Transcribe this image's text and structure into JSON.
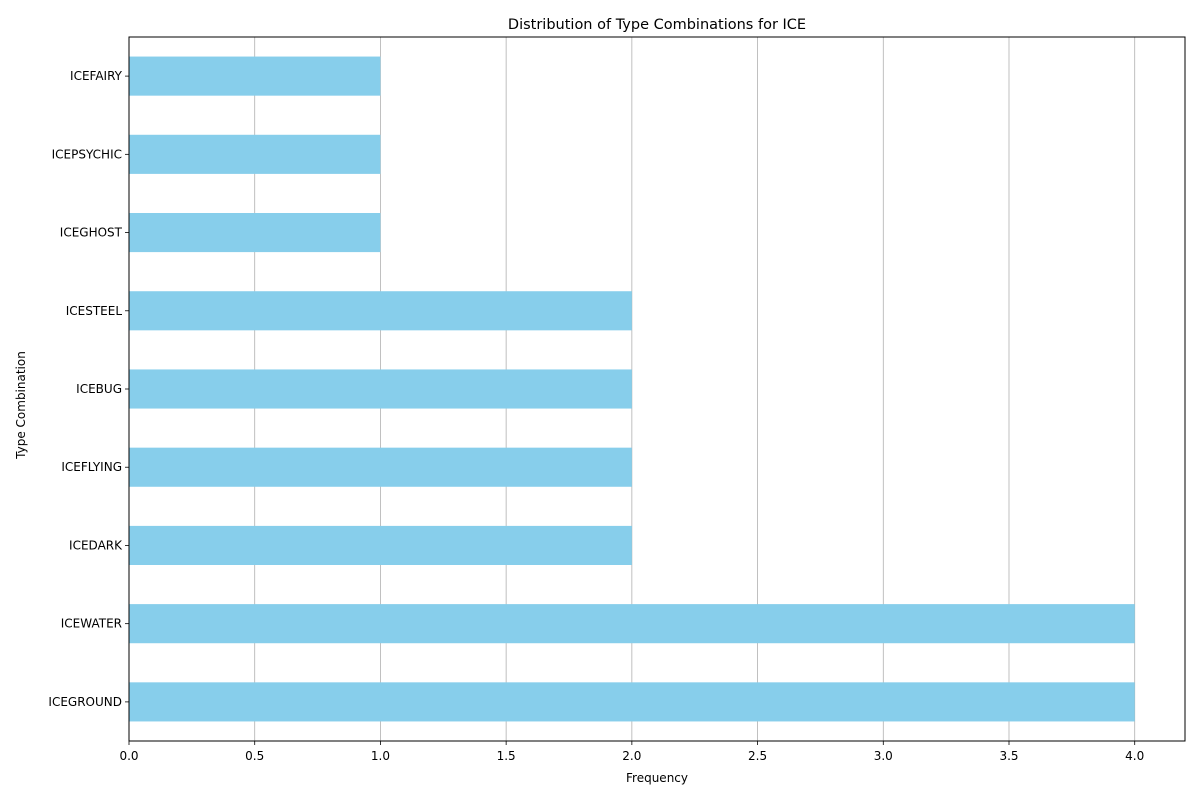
{
  "chart_data": {
    "type": "bar",
    "orientation": "horizontal",
    "title": "Distribution of Type Combinations for ICE",
    "xlabel": "Frequency",
    "ylabel": "Type Combination",
    "categories": [
      "ICEGROUND",
      "ICEWATER",
      "ICEDARK",
      "ICEFLYING",
      "ICEBUG",
      "ICESTEEL",
      "ICEGHOST",
      "ICEPSYCHIC",
      "ICEFAIRY"
    ],
    "values": [
      4,
      4,
      2,
      2,
      2,
      2,
      1,
      1,
      1
    ],
    "xlim": [
      0,
      4.2
    ],
    "xticks": [
      "0.0",
      "0.5",
      "1.0",
      "1.5",
      "2.0",
      "2.5",
      "3.0",
      "3.5",
      "4.0"
    ],
    "grid": "vertical",
    "bar_color": "#87ceeb"
  }
}
